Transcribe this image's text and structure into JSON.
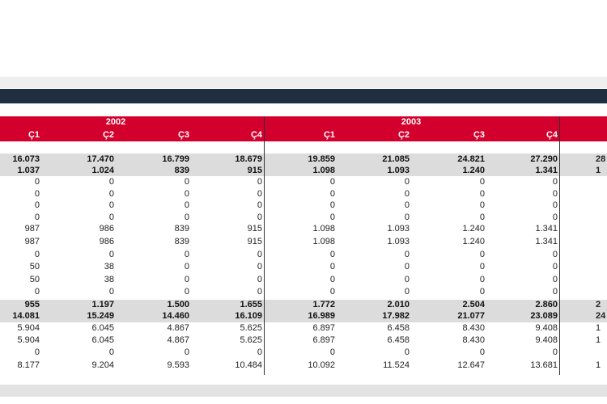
{
  "colors": {
    "navy": "#1f2f40",
    "red": "#d3002d",
    "row_highlight": "#dcdcdc"
  },
  "years": [
    "2002",
    "2003"
  ],
  "quarters": [
    "Ç1",
    "Ç2",
    "Ç3",
    "Ç4",
    "Ç1",
    "Ç2",
    "Ç3",
    "Ç4"
  ],
  "rows": [
    {
      "bold": true,
      "values": [
        "16.073",
        "17.470",
        "16.799",
        "18.679",
        "19.859",
        "21.085",
        "24.821",
        "27.290"
      ],
      "partial": "28"
    },
    {
      "bold": true,
      "values": [
        "1.037",
        "1.024",
        "839",
        "915",
        "1.098",
        "1.093",
        "1.240",
        "1.341"
      ],
      "partial": "1"
    },
    {
      "bold": false,
      "values": [
        "0",
        "0",
        "0",
        "0",
        "0",
        "0",
        "0",
        "0"
      ],
      "partial": ""
    },
    {
      "bold": false,
      "values": [
        "0",
        "0",
        "0",
        "0",
        "0",
        "0",
        "0",
        "0"
      ],
      "partial": ""
    },
    {
      "bold": false,
      "values": [
        "0",
        "0",
        "0",
        "0",
        "0",
        "0",
        "0",
        "0"
      ],
      "partial": ""
    },
    {
      "bold": false,
      "values": [
        "0",
        "0",
        "0",
        "0",
        "0",
        "0",
        "0",
        "0"
      ],
      "partial": ""
    },
    {
      "bold": false,
      "values": [
        "987",
        "986",
        "839",
        "915",
        "1.098",
        "1.093",
        "1.240",
        "1.341"
      ],
      "partial": ""
    },
    {
      "bold": false,
      "values": [
        "987",
        "986",
        "839",
        "915",
        "1.098",
        "1.093",
        "1.240",
        "1.341"
      ],
      "partial": ""
    },
    {
      "bold": false,
      "values": [
        "0",
        "0",
        "0",
        "0",
        "0",
        "0",
        "0",
        "0"
      ],
      "partial": ""
    },
    {
      "bold": false,
      "values": [
        "50",
        "38",
        "0",
        "0",
        "0",
        "0",
        "0",
        "0"
      ],
      "partial": ""
    },
    {
      "bold": false,
      "values": [
        "50",
        "38",
        "0",
        "0",
        "0",
        "0",
        "0",
        "0"
      ],
      "partial": ""
    },
    {
      "bold": false,
      "values": [
        "0",
        "0",
        "0",
        "0",
        "0",
        "0",
        "0",
        "0"
      ],
      "partial": ""
    },
    {
      "bold": true,
      "values": [
        "955",
        "1.197",
        "1.500",
        "1.655",
        "1.772",
        "2.010",
        "2.504",
        "2.860"
      ],
      "partial": "2"
    },
    {
      "bold": true,
      "values": [
        "14.081",
        "15.249",
        "14.460",
        "16.109",
        "16.989",
        "17.982",
        "21.077",
        "23.089"
      ],
      "partial": "24"
    },
    {
      "bold": false,
      "values": [
        "5.904",
        "6.045",
        "4.867",
        "5.625",
        "6.897",
        "6.458",
        "8.430",
        "9.408"
      ],
      "partial": "1"
    },
    {
      "bold": false,
      "values": [
        "5.904",
        "6.045",
        "4.867",
        "5.625",
        "6.897",
        "6.458",
        "8.430",
        "9.408"
      ],
      "partial": "1"
    },
    {
      "bold": false,
      "values": [
        "0",
        "0",
        "0",
        "0",
        "0",
        "0",
        "0",
        "0"
      ],
      "partial": ""
    },
    {
      "bold": false,
      "values": [
        "8.177",
        "9.204",
        "9.593",
        "10.484",
        "10.092",
        "11.524",
        "12.647",
        "13.681"
      ],
      "partial": "1"
    }
  ]
}
